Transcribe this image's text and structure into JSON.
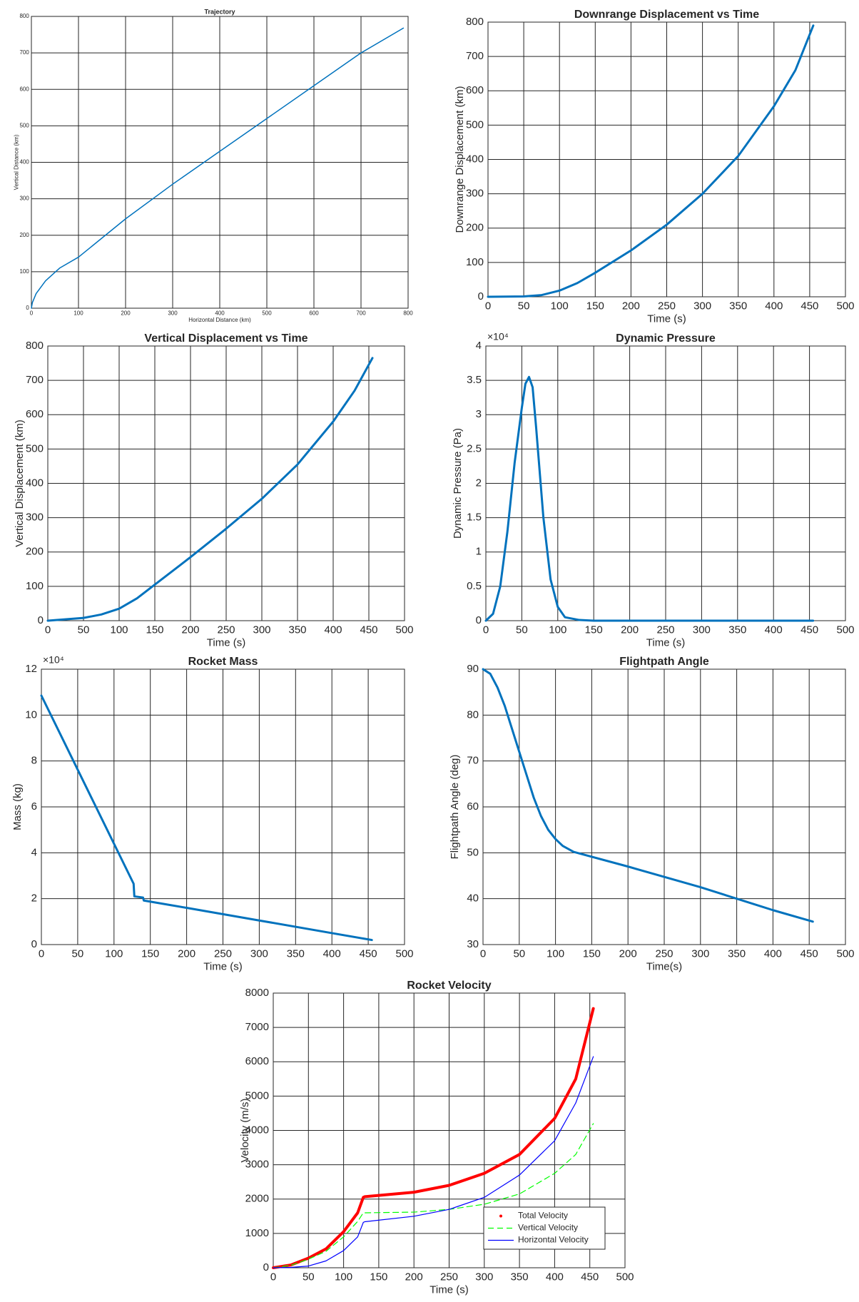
{
  "chart_data": [
    {
      "type": "line",
      "title": "Trajectory",
      "xlabel": "Horizontal Distance (km)",
      "ylabel": "Vertical Distance (km)",
      "x": [
        0,
        2,
        10,
        30,
        60,
        100,
        200,
        300,
        400,
        500,
        600,
        700,
        790
      ],
      "series": [
        {
          "color": "#0072bd",
          "values": [
            0,
            15,
            40,
            75,
            110,
            140,
            245,
            340,
            430,
            520,
            610,
            700,
            768
          ]
        }
      ],
      "xlim": [
        0,
        800
      ],
      "xticks": [
        0,
        100,
        200,
        300,
        400,
        500,
        600,
        700,
        800
      ],
      "ylim": [
        0,
        800
      ],
      "yticks": [
        0,
        100,
        200,
        300,
        400,
        500,
        600,
        700,
        800
      ],
      "grid": true
    },
    {
      "type": "line",
      "title": "Downrange Displacement vs Time",
      "xlabel": "Time (s)",
      "ylabel": "Downrange Displacement (km)",
      "x": [
        0,
        50,
        75,
        100,
        125,
        150,
        200,
        250,
        300,
        350,
        400,
        430,
        455
      ],
      "series": [
        {
          "color": "#0072bd",
          "values": [
            0,
            1,
            5,
            18,
            40,
            70,
            135,
            210,
            300,
            410,
            555,
            660,
            790
          ]
        }
      ],
      "xlim": [
        0,
        500
      ],
      "xticks": [
        0,
        50,
        100,
        150,
        200,
        250,
        300,
        350,
        400,
        450,
        500
      ],
      "ylim": [
        0,
        800
      ],
      "yticks": [
        0,
        100,
        200,
        300,
        400,
        500,
        600,
        700,
        800
      ],
      "grid": true
    },
    {
      "type": "line",
      "title": "Vertical Displacement vs Time",
      "xlabel": "Time (s)",
      "ylabel": "Vertical Displacement (km)",
      "x": [
        0,
        50,
        75,
        100,
        125,
        150,
        200,
        250,
        300,
        350,
        400,
        430,
        455
      ],
      "series": [
        {
          "color": "#0072bd",
          "values": [
            0,
            8,
            18,
            35,
            65,
            105,
            185,
            268,
            355,
            455,
            580,
            670,
            765
          ]
        }
      ],
      "xlim": [
        0,
        500
      ],
      "xticks": [
        0,
        50,
        100,
        150,
        200,
        250,
        300,
        350,
        400,
        450,
        500
      ],
      "ylim": [
        0,
        800
      ],
      "yticks": [
        0,
        100,
        200,
        300,
        400,
        500,
        600,
        700,
        800
      ],
      "grid": true
    },
    {
      "type": "line",
      "title": "Dynamic Pressure",
      "xlabel": "Time (s)",
      "ylabel": "Dynamic Pressure (Pa)",
      "yexponent": "×10⁴",
      "x": [
        0,
        10,
        20,
        30,
        40,
        50,
        55,
        60,
        65,
        70,
        80,
        90,
        100,
        110,
        130,
        150,
        200,
        300,
        400,
        455
      ],
      "series": [
        {
          "color": "#0072bd",
          "values": [
            0,
            0.1,
            0.5,
            1.3,
            2.3,
            3.1,
            3.45,
            3.55,
            3.4,
            2.8,
            1.5,
            0.6,
            0.2,
            0.05,
            0.01,
            0,
            0,
            0,
            0,
            0
          ]
        }
      ],
      "xlim": [
        0,
        500
      ],
      "xticks": [
        0,
        50,
        100,
        150,
        200,
        250,
        300,
        350,
        400,
        450,
        500
      ],
      "ylim": [
        0,
        4
      ],
      "yticks": [
        0,
        0.5,
        1,
        1.5,
        2,
        2.5,
        3,
        3.5,
        4
      ],
      "grid": true
    },
    {
      "type": "line",
      "title": "Rocket Mass",
      "xlabel": "Time (s)",
      "ylabel": "Mass (kg)",
      "yexponent": "×10⁴",
      "x": [
        0,
        127,
        128,
        140,
        141,
        200,
        300,
        400,
        455
      ],
      "series": [
        {
          "color": "#0072bd",
          "values": [
            10.85,
            2.65,
            2.1,
            2.05,
            1.92,
            1.6,
            1.05,
            0.5,
            0.2
          ]
        }
      ],
      "xlim": [
        0,
        500
      ],
      "xticks": [
        0,
        50,
        100,
        150,
        200,
        250,
        300,
        350,
        400,
        450,
        500
      ],
      "ylim": [
        0,
        12
      ],
      "yticks": [
        0,
        2,
        4,
        6,
        8,
        10,
        12
      ],
      "grid": true
    },
    {
      "type": "line",
      "title": "Flightpath Angle",
      "xlabel": "Time(s)",
      "ylabel": "Flightpath Angle (deg)",
      "x": [
        0,
        10,
        20,
        30,
        40,
        50,
        60,
        70,
        80,
        90,
        100,
        110,
        125,
        200,
        300,
        400,
        455
      ],
      "series": [
        {
          "color": "#0072bd",
          "values": [
            90,
            89,
            86,
            82,
            77,
            72,
            67,
            62,
            58,
            55,
            53,
            51.5,
            50.2,
            47,
            42.5,
            37.5,
            35
          ]
        }
      ],
      "xlim": [
        0,
        500
      ],
      "xticks": [
        0,
        50,
        100,
        150,
        200,
        250,
        300,
        350,
        400,
        450,
        500
      ],
      "ylim": [
        30,
        90
      ],
      "yticks": [
        30,
        40,
        50,
        60,
        70,
        80,
        90
      ],
      "grid": true
    },
    {
      "type": "line",
      "title": "Rocket Velocity",
      "xlabel": "Time (s)",
      "ylabel": "Velocity (m/s)",
      "x": [
        0,
        25,
        50,
        75,
        100,
        120,
        128,
        130,
        200,
        250,
        300,
        350,
        400,
        430,
        455
      ],
      "series": [
        {
          "name": "Total Velocity",
          "color": "#ff0000",
          "marker": ".",
          "values": [
            0,
            80,
            280,
            550,
            1050,
            1600,
            2050,
            2070,
            2200,
            2400,
            2750,
            3300,
            4350,
            5500,
            7550
          ]
        },
        {
          "name": "Vertical Velocity",
          "color": "#00ff00",
          "linestyle": "--",
          "values": [
            0,
            70,
            250,
            480,
            900,
            1350,
            1600,
            1600,
            1620,
            1700,
            1850,
            2150,
            2750,
            3300,
            4200
          ]
        },
        {
          "name": "Horizontal Velocity",
          "color": "#0000ff",
          "linestyle": "-",
          "values": [
            0,
            10,
            50,
            200,
            500,
            900,
            1320,
            1340,
            1500,
            1700,
            2050,
            2700,
            3700,
            4800,
            6150
          ]
        }
      ],
      "xlim": [
        0,
        500
      ],
      "xticks": [
        0,
        50,
        100,
        150,
        200,
        250,
        300,
        350,
        400,
        450,
        500
      ],
      "ylim": [
        0,
        8000
      ],
      "yticks": [
        0,
        1000,
        2000,
        3000,
        4000,
        5000,
        6000,
        7000,
        8000
      ],
      "grid": true,
      "legend": "lower right"
    }
  ]
}
